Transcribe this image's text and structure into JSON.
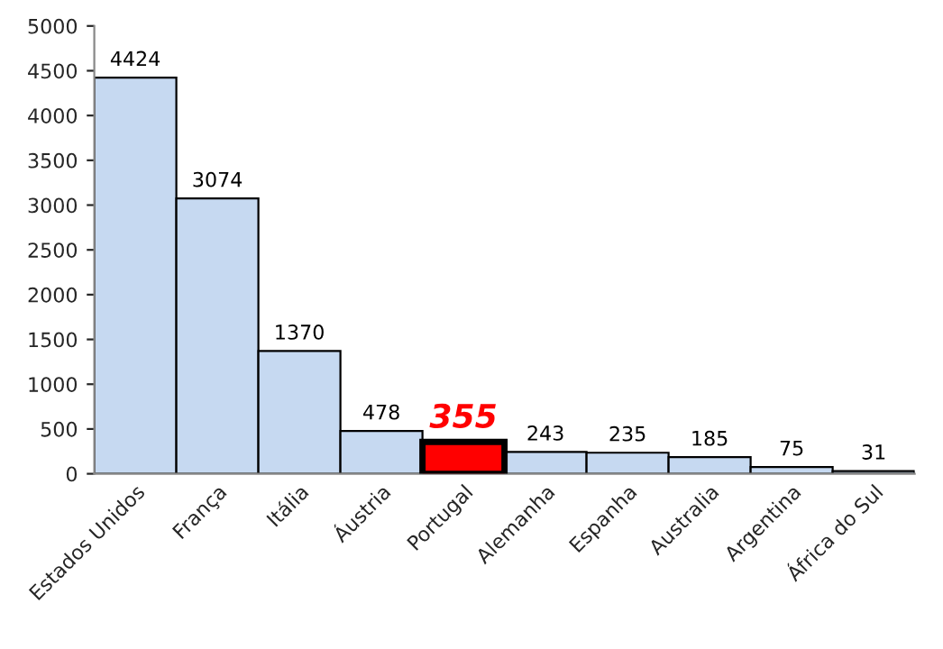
{
  "chart_data": {
    "type": "bar",
    "categories": [
      "Estados Unidos",
      "França",
      "Itália",
      "Áustria",
      "Portugal",
      "Alemanha",
      "Espanha",
      "Australia",
      "Argentina",
      "África do Sul"
    ],
    "values": [
      4424,
      3074,
      1370,
      478,
      355,
      243,
      235,
      185,
      75,
      31
    ],
    "colors": [
      "#c6d9f1",
      "#c6d9f1",
      "#c6d9f1",
      "#c6d9f1",
      "#ff0000",
      "#c6d9f1",
      "#c6d9f1",
      "#c6d9f1",
      "#c6d9f1",
      "#c6d9f1"
    ],
    "ylim": [
      0,
      5000
    ],
    "yticks": [
      0,
      500,
      1000,
      1500,
      2000,
      2500,
      3000,
      3500,
      4000,
      4500,
      5000
    ],
    "data_labels": true,
    "grid": false,
    "legend": false
  }
}
